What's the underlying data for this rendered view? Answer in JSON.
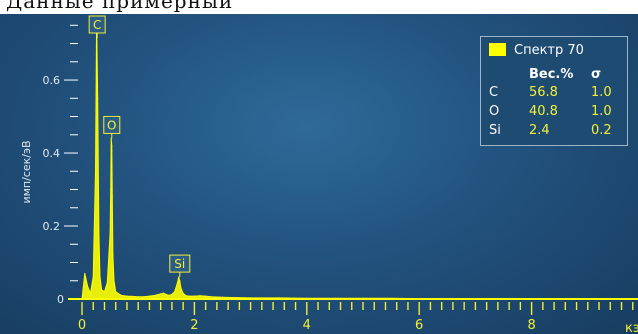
{
  "top_fragment": "Данные примерный",
  "legend": {
    "spectrum_label": "Спектр 70",
    "swatch_color": "#ffff00",
    "col_weight": "Вес.%",
    "col_sigma": "σ",
    "rows": [
      {
        "element": "C",
        "weight": "56.8",
        "sigma": "1.0"
      },
      {
        "element": "O",
        "weight": "40.8",
        "sigma": "1.0"
      },
      {
        "element": "Si",
        "weight": "2.4",
        "sigma": "0.2"
      }
    ]
  },
  "chart_data": {
    "type": "line",
    "title": "",
    "xlabel": "кэ",
    "ylabel": "имп/сек/эВ",
    "xlim": [
      -0.3,
      10.1
    ],
    "ylim": [
      0,
      0.77
    ],
    "x_ticks": [
      0,
      2,
      4,
      6,
      8
    ],
    "y_ticks": [
      0.2,
      0.4,
      0.6
    ],
    "y_tick_labels": [
      "0.2",
      "0.4",
      "0.6"
    ],
    "zero_label": "0",
    "series": [
      {
        "color": "#ffff00",
        "x": [
          0,
          0.05,
          0.1,
          0.15,
          0.2,
          0.24,
          0.26,
          0.28,
          0.3,
          0.32,
          0.35,
          0.4,
          0.45,
          0.5,
          0.51,
          0.52,
          0.53,
          0.54,
          0.55,
          0.57,
          0.6,
          0.7,
          0.8,
          0.9,
          1.0,
          1.1,
          1.2,
          1.3,
          1.4,
          1.45,
          1.5,
          1.55,
          1.6,
          1.65,
          1.7,
          1.72,
          1.74,
          1.76,
          1.8,
          1.85,
          1.9,
          2.0,
          2.1,
          2.2,
          2.3,
          2.5,
          2.7,
          3.0,
          3.5,
          4.0,
          4.5,
          5.0,
          5.5,
          6.0,
          6.5,
          7.0,
          7.5,
          8.0,
          8.5,
          9.0,
          9.5,
          10.0
        ],
        "y": [
          0.0,
          0.07,
          0.035,
          0.015,
          0.06,
          0.35,
          0.77,
          0.55,
          0.18,
          0.06,
          0.025,
          0.02,
          0.045,
          0.18,
          0.3,
          0.44,
          0.42,
          0.28,
          0.12,
          0.05,
          0.02,
          0.01,
          0.008,
          0.007,
          0.006,
          0.006,
          0.008,
          0.01,
          0.014,
          0.016,
          0.012,
          0.01,
          0.013,
          0.02,
          0.045,
          0.06,
          0.05,
          0.03,
          0.015,
          0.009,
          0.008,
          0.008,
          0.009,
          0.008,
          0.006,
          0.005,
          0.004,
          0.003,
          0.003,
          0.002,
          0.002,
          0.002,
          0.002,
          0.001,
          0.001,
          0.001,
          0.001,
          0.001,
          0.001,
          0.001,
          0.001,
          0.001
        ]
      }
    ],
    "peak_labels": [
      {
        "text": "C",
        "x": 0.27,
        "y": 0.77
      },
      {
        "text": "O",
        "x": 0.53,
        "y": 0.44
      },
      {
        "text": "Si",
        "x": 1.74,
        "y": 0.06
      }
    ]
  }
}
